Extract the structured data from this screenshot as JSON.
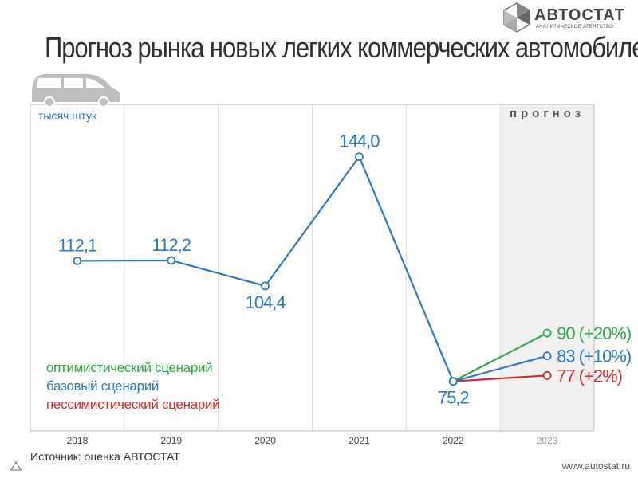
{
  "header": {
    "title": "Прогноз рынка новых легких коммерческих автомобилей"
  },
  "logo": {
    "name": "АВТОСТАТ",
    "subtitle": "АНАЛИТИЧЕСКОЕ АГЕНТСТВО"
  },
  "footer": {
    "source": "Источник: оценка АВТОСТАТ",
    "website": "www.autostat.ru"
  },
  "colors": {
    "base": "#2f7bbf",
    "optimistic": "#2ea84a",
    "pessimistic": "#d62a2a",
    "forecast_bg": "#f0f0f0",
    "grid": "#dddddd",
    "frame": "#bbbbbb"
  },
  "icons": {
    "vehicle": "minivan-icon"
  },
  "chart_data": {
    "type": "line",
    "title": "Прогноз рынка новых легких коммерческих автомобилей",
    "unit_label": "тысяч штук",
    "forecast_label": "прогноз",
    "categories": [
      "2018",
      "2019",
      "2020",
      "2021",
      "2022",
      "2023"
    ],
    "ylim": [
      60,
      160
    ],
    "grid": "vertical",
    "series": [
      {
        "name": "базовый сценарий",
        "key": "base",
        "values": [
          112.1,
          112.2,
          104.4,
          144.0,
          75.2,
          83
        ],
        "labels": [
          "112,1",
          "112,2",
          "104,4",
          "144,0",
          "75,2",
          "83 (+10%)"
        ]
      },
      {
        "name": "оптимистический сценарий",
        "key": "optimistic",
        "values": [
          null,
          null,
          null,
          null,
          75.2,
          90
        ],
        "labels": [
          "",
          "",
          "",
          "",
          "",
          "90 (+20%)"
        ]
      },
      {
        "name": "пессимистический сценарий",
        "key": "pessimistic",
        "values": [
          null,
          null,
          null,
          null,
          75.2,
          77
        ],
        "labels": [
          "",
          "",
          "",
          "",
          "",
          "77 (+2%)"
        ]
      }
    ],
    "legend": [
      "оптимистический сценарий",
      "базовый сценарий",
      "пессимистический сценарий"
    ],
    "legend_position": "bottom-left"
  }
}
